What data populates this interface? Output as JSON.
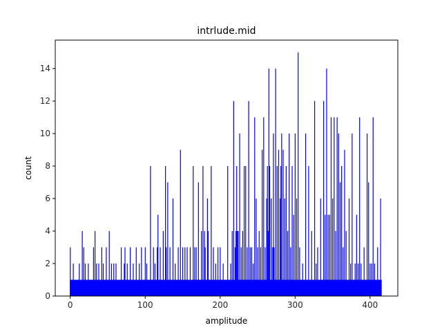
{
  "chart_data": {
    "type": "bar",
    "title": "intrlude.mid",
    "xlabel": "amplitude",
    "ylabel": "count",
    "xlim": [
      -20,
      437
    ],
    "ylim": [
      0,
      15.75
    ],
    "x_ticks": [
      0,
      100,
      200,
      300,
      400
    ],
    "y_ticks": [
      0,
      2,
      4,
      6,
      8,
      10,
      12,
      14
    ],
    "grid": false,
    "bar_color": "#0000ff",
    "baseline": {
      "x_range": [
        0,
        415
      ],
      "count": 1,
      "note": "every amplitude 0–415 has at least count 1 (solid band)"
    },
    "series": [
      {
        "x": [
          0,
          4,
          12,
          16,
          18,
          20,
          24,
          31,
          33,
          35,
          38,
          42,
          44,
          48,
          52,
          55,
          58,
          61,
          68,
          72,
          73,
          76,
          80,
          84,
          88,
          92,
          95,
          100,
          102,
          107,
          111,
          113,
          116,
          117,
          120,
          124,
          127,
          128,
          130,
          133,
          137,
          140,
          144,
          147,
          150,
          153,
          156,
          160,
          164,
          166,
          168,
          171,
          175,
          177,
          179,
          180,
          183,
          184,
          188,
          191,
          194,
          197,
          200,
          204,
          210,
          214,
          216,
          218,
          220,
          221,
          222,
          223,
          224,
          226,
          228,
          230,
          232,
          234,
          236,
          238,
          240,
          242,
          244,
          246,
          248,
          250,
          252,
          254,
          256,
          258,
          260,
          262,
          263,
          264,
          265,
          266,
          268,
          270,
          271,
          272,
          274,
          276,
          278,
          280,
          281,
          282,
          284,
          286,
          288,
          290,
          292,
          294,
          296,
          298,
          300,
          302,
          304,
          306,
          310,
          314,
          318,
          322,
          326,
          328,
          330,
          334,
          338,
          340,
          342,
          344,
          346,
          348,
          350,
          352,
          354,
          356,
          358,
          360,
          362,
          364,
          366,
          368,
          372,
          374,
          376,
          380,
          382,
          384,
          386,
          388,
          392,
          396,
          398,
          400,
          402,
          404,
          406,
          410,
          414
        ],
        "values": [
          3,
          2,
          2,
          4,
          3,
          2,
          2,
          3,
          4,
          2,
          2,
          3,
          2,
          3,
          4,
          2,
          2,
          2,
          3,
          2,
          3,
          2,
          3,
          2,
          3,
          2,
          3,
          3,
          2,
          8,
          3,
          2,
          3,
          5,
          3,
          4,
          8,
          3,
          7,
          3,
          6,
          2,
          3,
          9,
          3,
          3,
          3,
          3,
          8,
          3,
          3,
          7,
          4,
          8,
          4,
          3,
          6,
          4,
          8,
          3,
          2,
          3,
          3,
          2,
          8,
          2,
          4,
          12,
          3,
          4,
          8,
          4,
          4,
          10,
          3,
          4,
          8,
          8,
          3,
          12,
          3,
          3,
          2,
          11,
          6,
          3,
          4,
          3,
          9,
          11,
          3,
          6,
          8,
          4,
          14,
          8,
          6,
          3,
          10,
          3,
          14,
          8,
          9,
          6,
          8,
          10,
          9,
          6,
          8,
          4,
          10,
          3,
          8,
          5,
          10,
          6,
          15,
          3,
          2,
          10,
          8,
          4,
          12,
          2,
          3,
          6,
          12,
          5,
          14,
          5,
          5,
          11,
          6,
          11,
          4,
          11,
          10,
          7,
          8,
          3,
          9,
          4,
          6,
          2,
          10,
          2,
          5,
          2,
          11,
          2,
          3,
          10,
          7,
          2,
          2,
          11,
          2,
          3,
          6
        ]
      }
    ]
  }
}
